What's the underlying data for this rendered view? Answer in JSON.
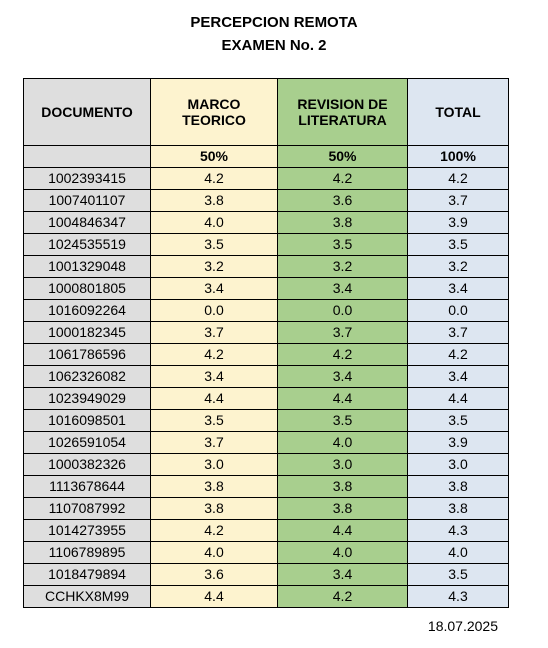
{
  "title_line1": "PERCEPCION REMOTA",
  "title_line2": "EXAMEN No. 2",
  "headers": {
    "documento": "DOCUMENTO",
    "marco_l1": "MARCO",
    "marco_l2": "TEORICO",
    "revision_l1": "REVISION DE",
    "revision_l2": "LITERATURA",
    "total": "TOTAL"
  },
  "weights": {
    "documento": "",
    "marco": "50%",
    "revision": "50%",
    "total": "100%"
  },
  "colors": {
    "documento": "#dedede",
    "marco": "#fdf3cf",
    "revision": "#a8cf8e",
    "total": "#dde6f1"
  },
  "rows": [
    {
      "doc": "1002393415",
      "marco": "4.2",
      "revision": "4.2",
      "total": "4.2"
    },
    {
      "doc": "1007401107",
      "marco": "3.8",
      "revision": "3.6",
      "total": "3.7"
    },
    {
      "doc": "1004846347",
      "marco": "4.0",
      "revision": "3.8",
      "total": "3.9"
    },
    {
      "doc": "1024535519",
      "marco": "3.5",
      "revision": "3.5",
      "total": "3.5"
    },
    {
      "doc": "1001329048",
      "marco": "3.2",
      "revision": "3.2",
      "total": "3.2"
    },
    {
      "doc": "1000801805",
      "marco": "3.4",
      "revision": "3.4",
      "total": "3.4"
    },
    {
      "doc": "1016092264",
      "marco": "0.0",
      "revision": "0.0",
      "total": "0.0"
    },
    {
      "doc": "1000182345",
      "marco": "3.7",
      "revision": "3.7",
      "total": "3.7"
    },
    {
      "doc": "1061786596",
      "marco": "4.2",
      "revision": "4.2",
      "total": "4.2"
    },
    {
      "doc": "1062326082",
      "marco": "3.4",
      "revision": "3.4",
      "total": "3.4"
    },
    {
      "doc": "1023949029",
      "marco": "4.4",
      "revision": "4.4",
      "total": "4.4"
    },
    {
      "doc": "1016098501",
      "marco": "3.5",
      "revision": "3.5",
      "total": "3.5"
    },
    {
      "doc": "1026591054",
      "marco": "3.7",
      "revision": "4.0",
      "total": "3.9"
    },
    {
      "doc": "1000382326",
      "marco": "3.0",
      "revision": "3.0",
      "total": "3.0"
    },
    {
      "doc": "1113678644",
      "marco": "3.8",
      "revision": "3.8",
      "total": "3.8"
    },
    {
      "doc": "1107087992",
      "marco": "3.8",
      "revision": "3.8",
      "total": "3.8"
    },
    {
      "doc": "1014273955",
      "marco": "4.2",
      "revision": "4.4",
      "total": "4.3"
    },
    {
      "doc": "1106789895",
      "marco": "4.0",
      "revision": "4.0",
      "total": "4.0"
    },
    {
      "doc": "1018479894",
      "marco": "3.6",
      "revision": "3.4",
      "total": "3.5"
    },
    {
      "doc": "CCHKX8M99",
      "marco": "4.4",
      "revision": "4.2",
      "total": "4.3"
    }
  ],
  "date": "18.07.2025"
}
